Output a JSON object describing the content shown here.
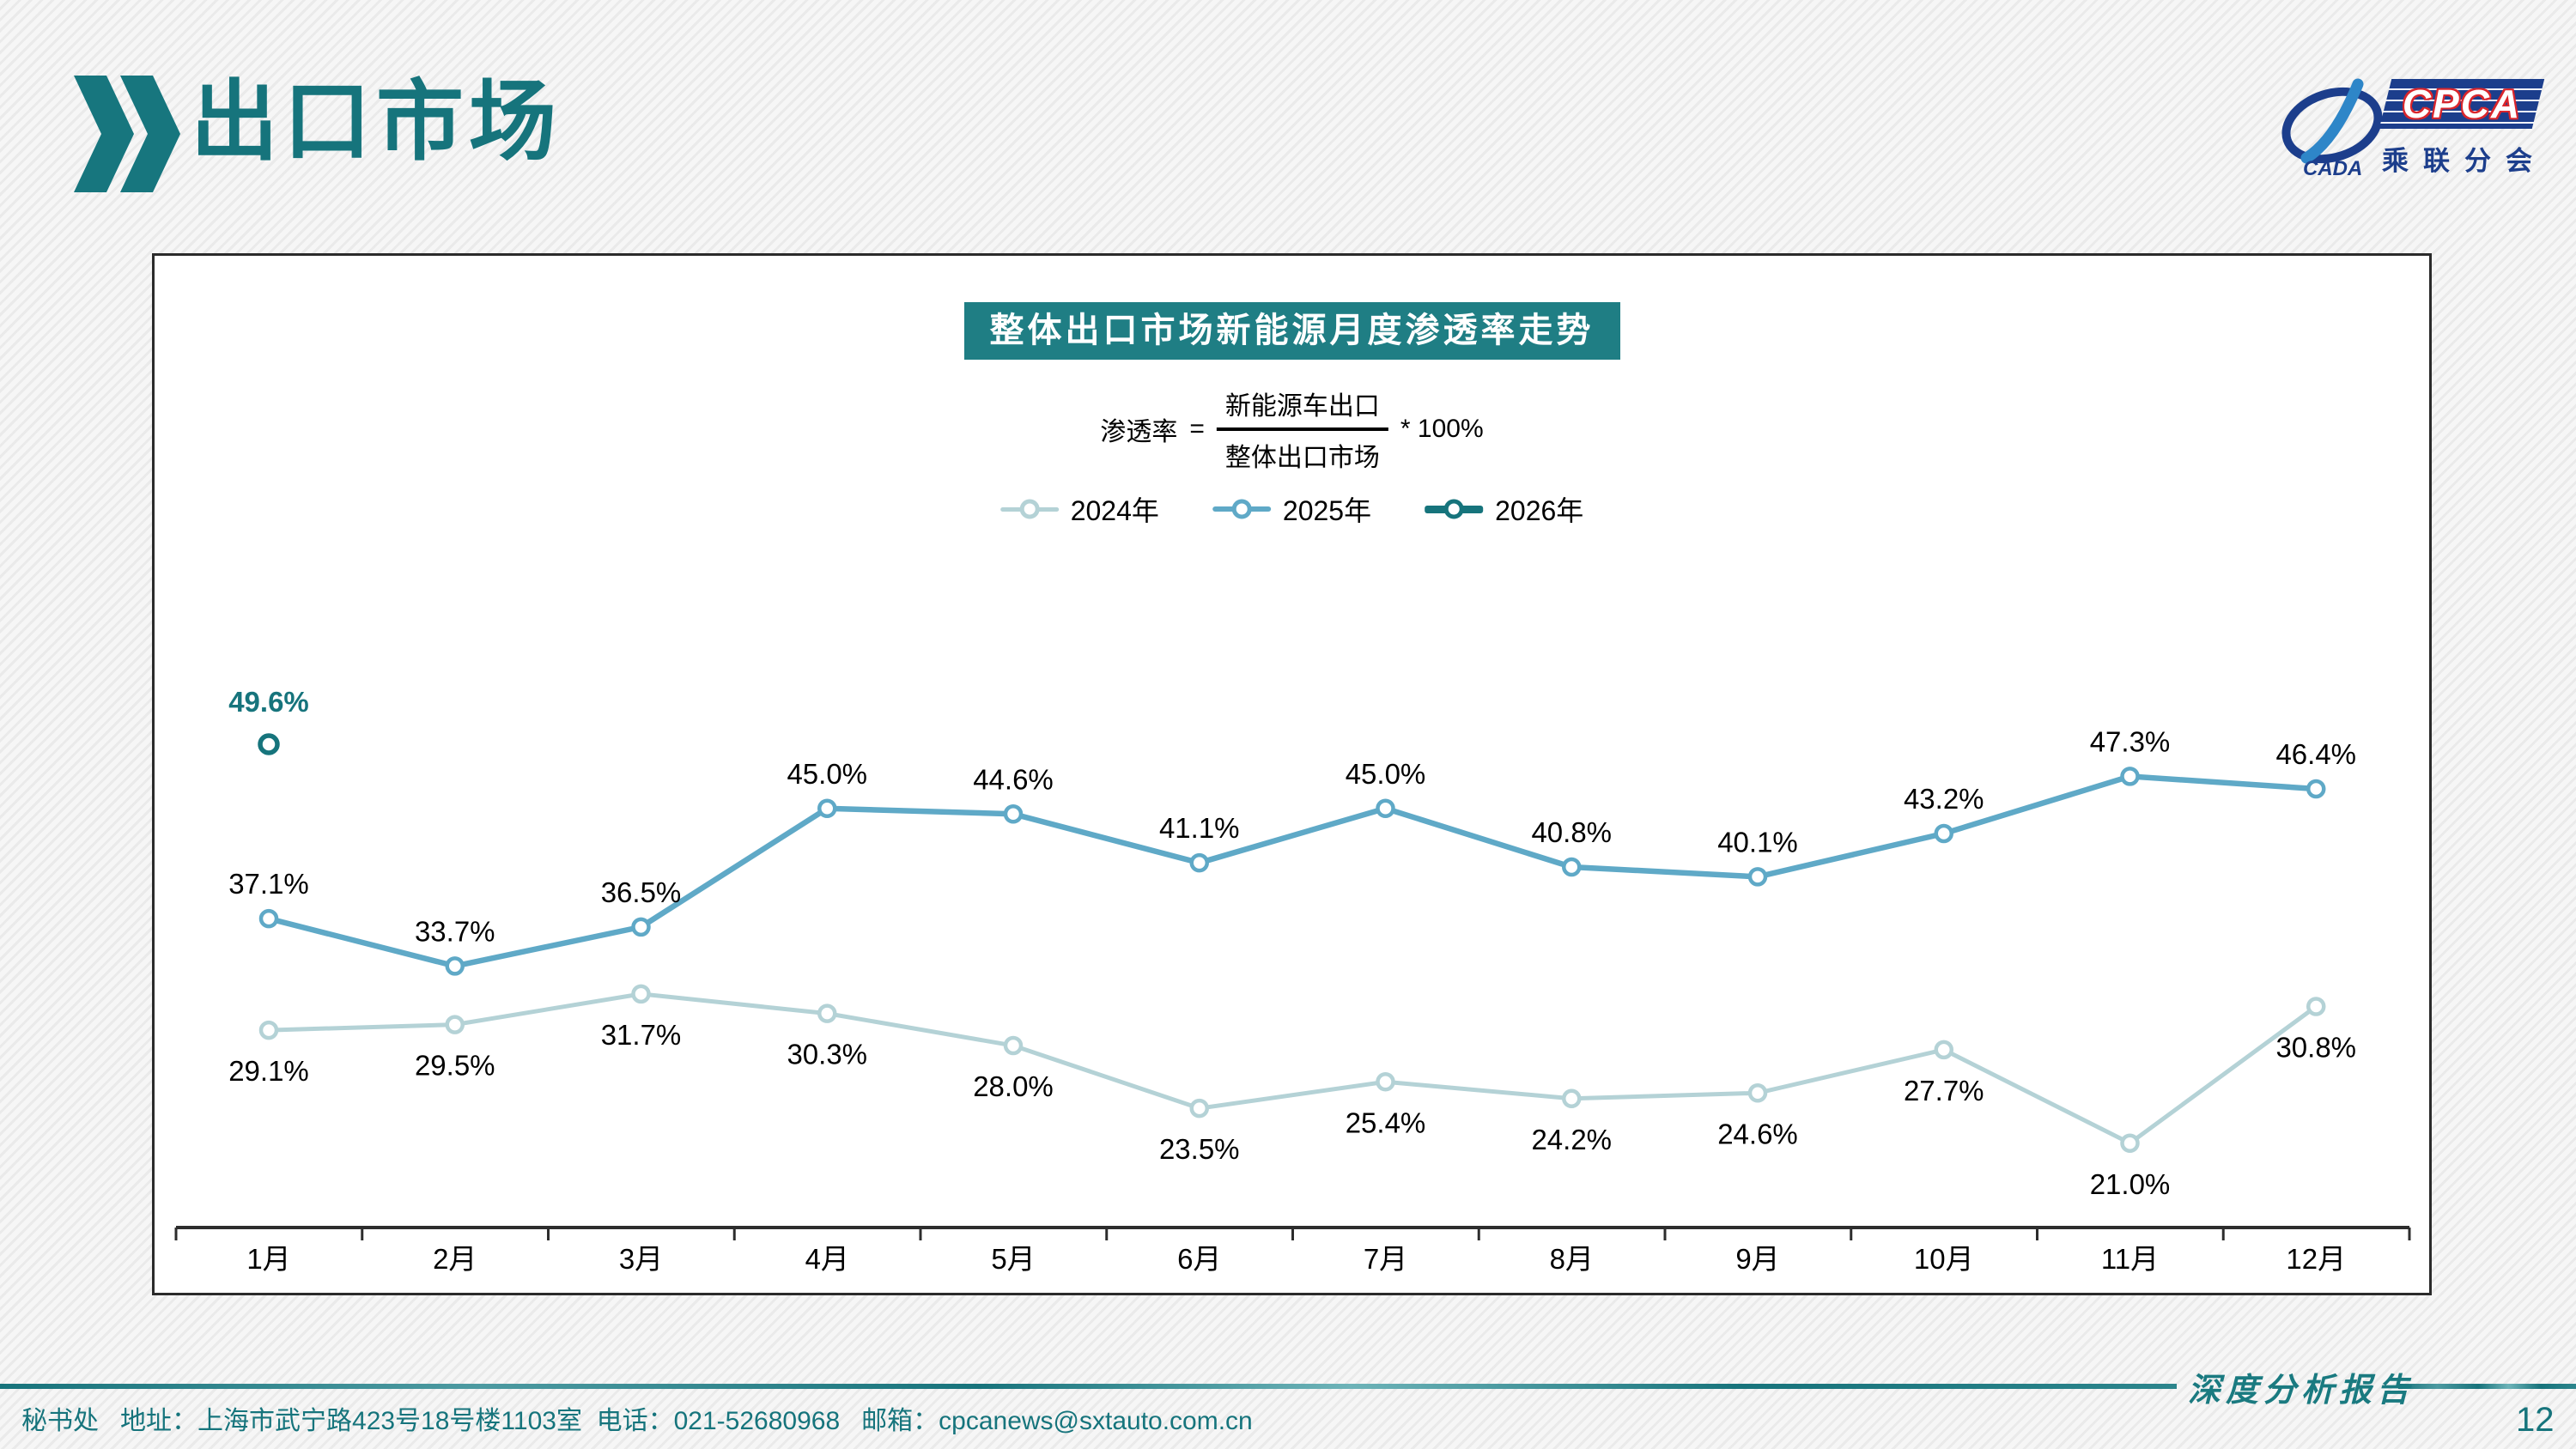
{
  "header": {
    "title": "出口市场"
  },
  "logo": {
    "emblem_text": "CADA",
    "brand": "CPCA",
    "subtitle": "乘联分会"
  },
  "formula": {
    "lhs": "渗透率",
    "equals": "=",
    "numerator": "新能源车出口",
    "denominator": "整体出口市场",
    "rhs": "* 100%"
  },
  "chart_data": {
    "type": "line",
    "title": "整体出口市场新能源月度渗透率走势",
    "categories": [
      "1月",
      "2月",
      "3月",
      "4月",
      "5月",
      "6月",
      "7月",
      "8月",
      "9月",
      "10月",
      "11月",
      "12月"
    ],
    "series": [
      {
        "name": "2024年",
        "color": "#b4d2d6",
        "line_width": 5,
        "marker_r": 9,
        "marker_stroke": 4.5,
        "label_position": "below",
        "label_color": "#000000",
        "label_bold": false,
        "values": [
          29.1,
          29.5,
          31.7,
          30.3,
          28.0,
          23.5,
          25.4,
          24.2,
          24.6,
          27.7,
          21.0,
          30.8
        ]
      },
      {
        "name": "2025年",
        "color": "#5fa9c7",
        "line_width": 6.5,
        "marker_r": 9,
        "marker_stroke": 4.5,
        "label_position": "above",
        "label_color": "#000000",
        "label_bold": false,
        "values": [
          37.1,
          33.7,
          36.5,
          45.0,
          44.6,
          41.1,
          45.0,
          40.8,
          40.1,
          43.2,
          47.3,
          46.4
        ]
      },
      {
        "name": "2026年",
        "color": "#16747c",
        "line_width": 9,
        "marker_r": 10,
        "marker_stroke": 5.5,
        "label_position": "above",
        "label_color": "#16747c",
        "label_bold": true,
        "values": [
          49.6,
          null,
          null,
          null,
          null,
          null,
          null,
          null,
          null,
          null,
          null,
          null
        ]
      }
    ],
    "unit": "%",
    "ylim": [
      15,
      57
    ],
    "grid": false,
    "legend_position": "top",
    "data_labels": true,
    "axis_color": "#2d2d2d"
  },
  "footer": {
    "info": "秘书处   地址：上海市武宁路423号18号楼1103室  电话：021-52680968   邮箱：cpcanews@sxtauto.com.cn",
    "report_label": "深度分析报告",
    "page_number": "12"
  }
}
